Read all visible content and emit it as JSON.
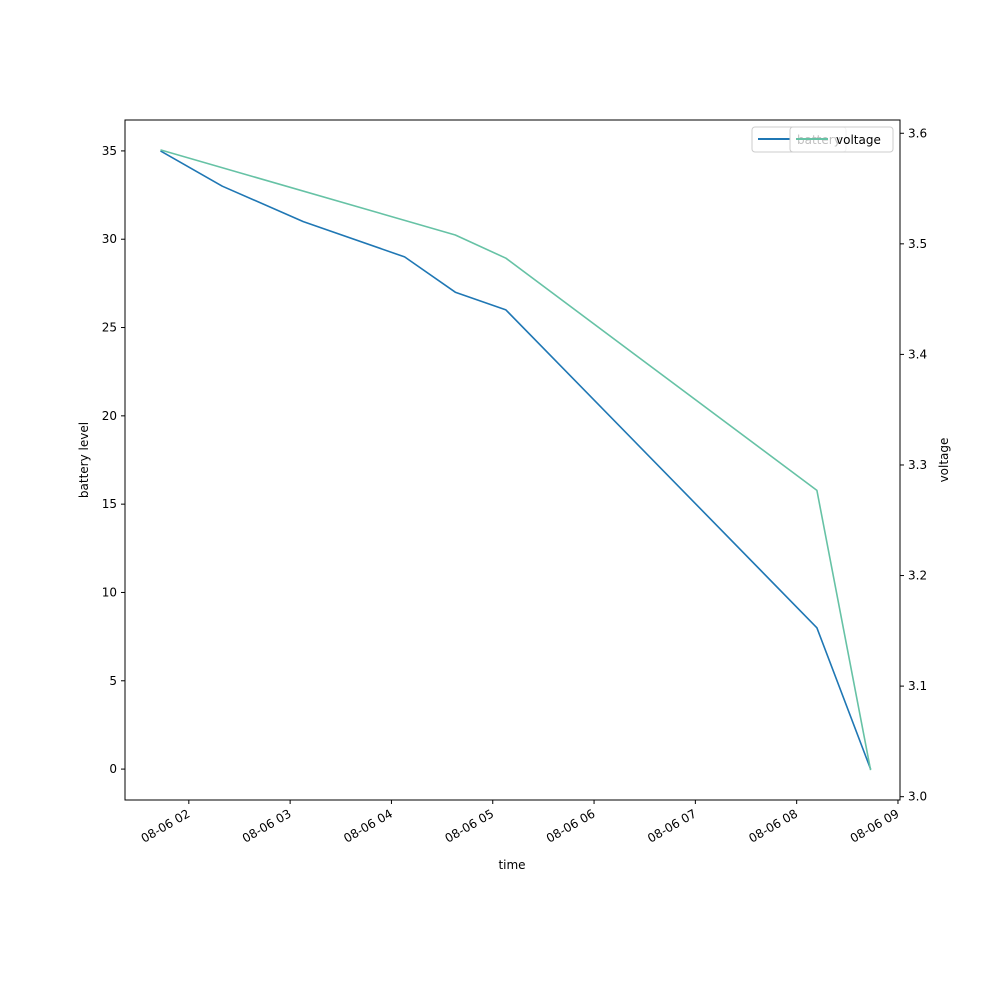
{
  "chart_data": {
    "type": "line",
    "xlabel": "time",
    "ylabel_left": "battery level",
    "ylabel_right": "voltage",
    "x_ticks": [
      "08-06 02",
      "08-06 03",
      "08-06 04",
      "08-06 05",
      "08-06 06",
      "08-06 07",
      "08-06 08",
      "08-06 09"
    ],
    "x_tick_hours": [
      2,
      3,
      4,
      5,
      6,
      7,
      8,
      9
    ],
    "xlim_hours": [
      1.37,
      9.02
    ],
    "ylim_left": [
      -1.75,
      36.75
    ],
    "yticks_left": [
      0,
      5,
      10,
      15,
      20,
      25,
      30,
      35
    ],
    "ylim_right": [
      2.997,
      3.612
    ],
    "yticks_right": [
      3.0,
      3.1,
      3.2,
      3.3,
      3.4,
      3.5,
      3.6
    ],
    "series": [
      {
        "name": "battery",
        "axis": "left",
        "color": "#1f77b4",
        "x_hours": [
          1.72,
          2.33,
          3.13,
          4.13,
          4.63,
          5.13,
          8.2,
          8.73
        ],
        "values": [
          35,
          33,
          31,
          29,
          27,
          26,
          8,
          0
        ]
      },
      {
        "name": "voltage",
        "axis": "right",
        "color": "#66c2a5",
        "x_hours": [
          1.72,
          4.63,
          5.13,
          8.2,
          8.73
        ],
        "values": [
          3.585,
          3.508,
          3.487,
          3.277,
          3.024
        ]
      }
    ],
    "legend_location": "top-right",
    "grid": false
  }
}
